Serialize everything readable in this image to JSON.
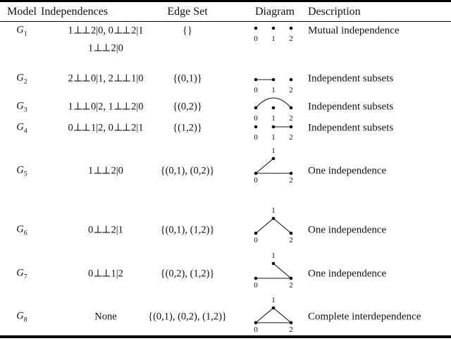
{
  "table": {
    "headers": {
      "model": "Model",
      "independences": "Independences",
      "edge_set": "Edge Set",
      "diagram": "Diagram",
      "description": "Description"
    },
    "rows": [
      {
        "model": {
          "base": "G",
          "sub": "1"
        },
        "independences": [
          "1⊥⊥2|0, 0⊥⊥2|1",
          "1⊥⊥2|0"
        ],
        "edge_set": "{}",
        "diagram": {
          "layout": "row",
          "node_labels": [
            "0",
            "1",
            "2"
          ],
          "edges": [],
          "arc": false
        },
        "description": "Mutual independence"
      },
      {
        "model": {
          "base": "G",
          "sub": "2"
        },
        "independences": [
          "2⊥⊥0|1, 2⊥⊥1|0"
        ],
        "edge_set": "{(0,1)}",
        "diagram": {
          "layout": "row",
          "node_labels": [
            "0",
            "1",
            "2"
          ],
          "edges": [
            [
              "0",
              "1"
            ]
          ],
          "arc": false
        },
        "description": "Independent subsets"
      },
      {
        "model": {
          "base": "G",
          "sub": "3"
        },
        "independences": [
          "1⊥⊥0|2, 1⊥⊥2|0"
        ],
        "edge_set": "{(0,2)}",
        "diagram": {
          "layout": "row",
          "node_labels": [
            "0",
            "1",
            "2"
          ],
          "edges": [
            [
              "0",
              "2"
            ]
          ],
          "arc": true
        },
        "description": "Independent subsets"
      },
      {
        "model": {
          "base": "G",
          "sub": "4"
        },
        "independences": [
          "0⊥⊥1|2, 0⊥⊥2|1"
        ],
        "edge_set": "{(1,2)}",
        "diagram": {
          "layout": "row",
          "node_labels": [
            "0",
            "1",
            "2"
          ],
          "edges": [
            [
              "1",
              "2"
            ]
          ],
          "arc": false
        },
        "description": "Independent subsets"
      },
      {
        "model": {
          "base": "G",
          "sub": "5"
        },
        "independences": [
          "1⊥⊥2|0"
        ],
        "edge_set": "{(0,1), (0,2)}",
        "diagram": {
          "layout": "triangle",
          "node_labels": [
            "0",
            "1",
            "2"
          ],
          "edges": [
            [
              "0",
              "1"
            ],
            [
              "0",
              "2"
            ]
          ],
          "arc": false
        },
        "description": "One independence"
      },
      {
        "model": {
          "base": "G",
          "sub": "6"
        },
        "independences": [
          "0⊥⊥2|1"
        ],
        "edge_set": "{(0,1), (1,2)}",
        "diagram": {
          "layout": "triangle",
          "node_labels": [
            "0",
            "1",
            "2"
          ],
          "edges": [
            [
              "0",
              "1"
            ],
            [
              "1",
              "2"
            ]
          ],
          "arc": false
        },
        "description": "One independence"
      },
      {
        "model": {
          "base": "G",
          "sub": "7"
        },
        "independences": [
          "0⊥⊥1|2"
        ],
        "edge_set": "{(0,2), (1,2)}",
        "diagram": {
          "layout": "triangle",
          "node_labels": [
            "0",
            "1",
            "2"
          ],
          "edges": [
            [
              "0",
              "2"
            ],
            [
              "1",
              "2"
            ]
          ],
          "arc": false
        },
        "description": "One independence"
      },
      {
        "model": {
          "base": "G",
          "sub": "8"
        },
        "independences": [
          "None"
        ],
        "edge_set": "{(0,1), (0,2), (1,2)}",
        "diagram": {
          "layout": "triangle",
          "node_labels": [
            "0",
            "1",
            "2"
          ],
          "edges": [
            [
              "0",
              "1"
            ],
            [
              "0",
              "2"
            ],
            [
              "1",
              "2"
            ]
          ],
          "arc": false
        },
        "description": "Complete interdependence"
      }
    ]
  },
  "colors": {
    "background": "#ffffff",
    "text": "#111111",
    "rule": "#000000"
  }
}
